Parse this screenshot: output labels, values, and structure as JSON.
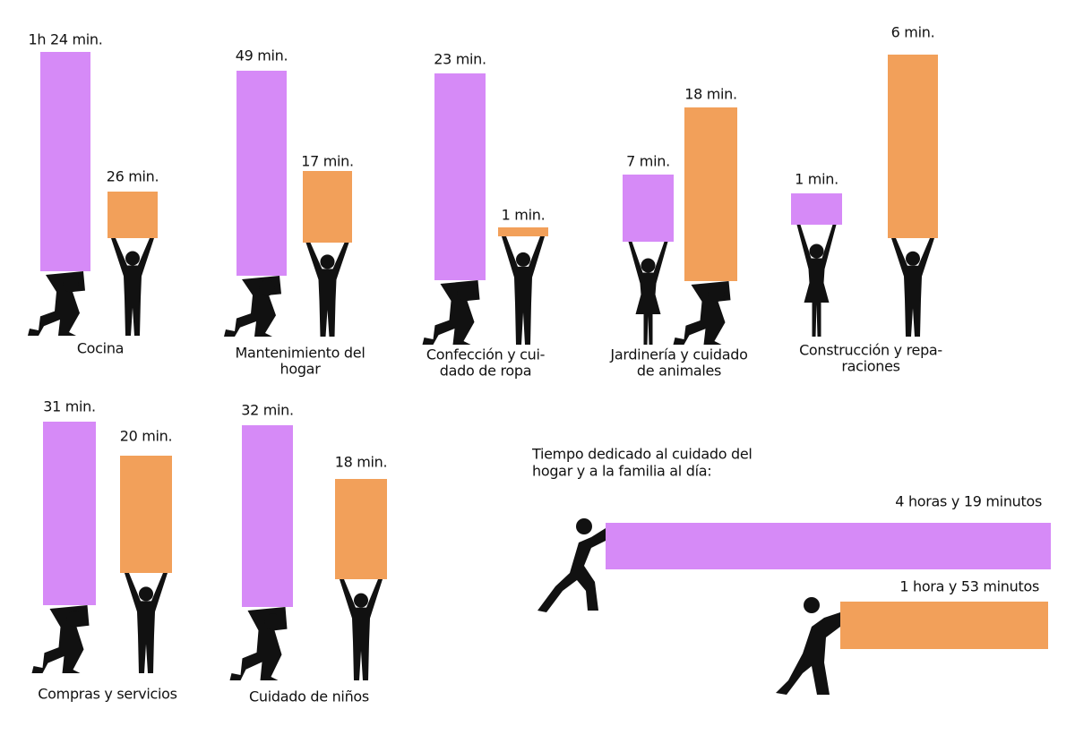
{
  "groups": [
    {
      "label": [
        "Cocina"
      ],
      "women": "1h 24 min.",
      "men": "26 min."
    },
    {
      "label": [
        "Mantenimiento del",
        "hogar"
      ],
      "women": "49 min.",
      "men": "17 min."
    },
    {
      "label": [
        "Confección y cui-",
        "dado de ropa"
      ],
      "women": "23 min.",
      "men": "1 min."
    },
    {
      "label": [
        "Jardinería y cuidado",
        "de animales"
      ],
      "women": "7 min.",
      "men": "18 min."
    },
    {
      "label": [
        "Construcción y repa-",
        "raciones"
      ],
      "women": "1 min.",
      "men": "6 min."
    },
    {
      "label": [
        "Compras y servicios"
      ],
      "women": "31 min.",
      "men": "20 min."
    },
    {
      "label": [
        "Cuidado de niños"
      ],
      "women": "32 min.",
      "men": "18 min."
    }
  ],
  "summary": {
    "title": [
      "Tiempo dedicado al cuidado del",
      "hogar y a la familia al día:"
    ],
    "women": "4 horas y 19 minutos",
    "men": "1 hora y 53 minutos"
  }
}
